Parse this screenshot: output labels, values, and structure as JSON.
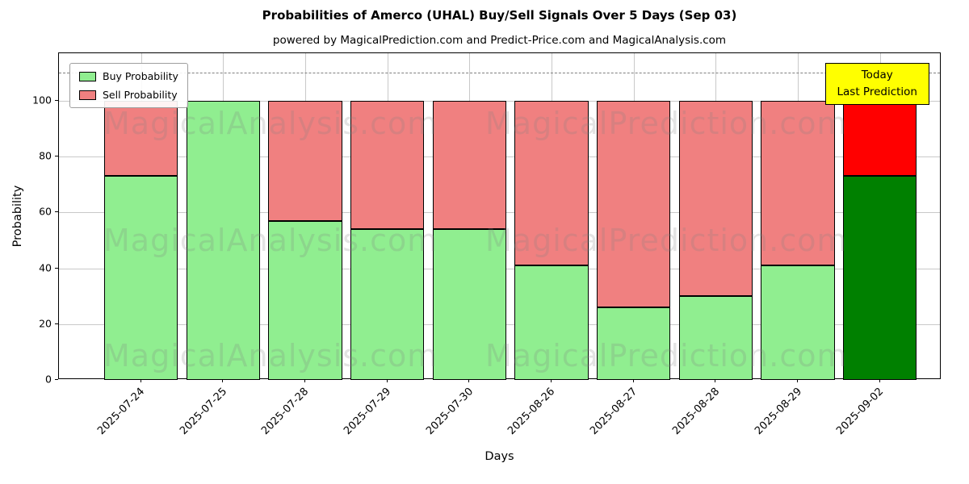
{
  "title": "Probabilities of Amerco (UHAL) Buy/Sell Signals Over 5 Days (Sep 03)",
  "subtitle": "powered by MagicalPrediction.com and Predict-Price.com and MagicalAnalysis.com",
  "watermarks": {
    "left": "MagicalAnalysis.com",
    "right": "MagicalPrediction.com"
  },
  "legend": {
    "items": [
      {
        "label": "Buy Probability",
        "color": "#90ee90"
      },
      {
        "label": "Sell Probability",
        "color": "#f08080"
      }
    ]
  },
  "annotation": {
    "line1": "Today",
    "line2": "Last Prediction",
    "bg_color": "#ffff00"
  },
  "chart_data": {
    "type": "bar",
    "stacked": true,
    "title": "Probabilities of Amerco (UHAL) Buy/Sell Signals Over 5 Days (Sep 03)",
    "xlabel": "Days",
    "ylabel": "Probability",
    "categories": [
      "2025-07-24",
      "2025-07-25",
      "2025-07-28",
      "2025-07-29",
      "2025-07-30",
      "2025-08-26",
      "2025-08-27",
      "2025-08-28",
      "2025-08-29",
      "2025-09-02"
    ],
    "series": [
      {
        "name": "Buy Probability",
        "color": "#90ee90",
        "values": [
          73,
          100,
          57,
          54,
          54,
          41,
          26,
          30,
          41,
          73
        ]
      },
      {
        "name": "Sell Probability",
        "color": "#f08080",
        "values": [
          27,
          0,
          43,
          46,
          46,
          59,
          74,
          70,
          59,
          27
        ]
      }
    ],
    "last_bar_colors": {
      "buy": "#008000",
      "sell": "#ff0000"
    },
    "ylim": [
      0,
      117
    ],
    "yticks": [
      0,
      20,
      40,
      60,
      80,
      100
    ],
    "dashed_line_y": 110,
    "grid": true,
    "legend_position": "upper left",
    "bar_edge_color": "#000000"
  }
}
